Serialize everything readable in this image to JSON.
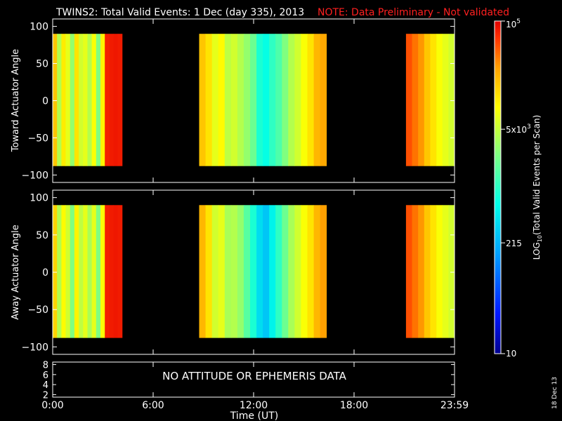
{
  "header": {
    "title": "TWINS2: Total Valid Events:  1 Dec (day 335), 2013",
    "note": "NOTE: Data Preliminary - Not validated",
    "note_color": "#ff2020"
  },
  "stamp": "18 Dec 13",
  "chart_data": [
    {
      "type": "heatmap",
      "panel": "toward",
      "ylabel": "Toward Actuator Angle",
      "ylim": [
        -110,
        110
      ],
      "yticks": [
        100,
        50,
        0,
        -50,
        -100
      ],
      "xlim": [
        0,
        24
      ],
      "angle_range": [
        -88,
        90
      ],
      "blocks": [
        {
          "start": 0.0,
          "end": 4.15,
          "level": [
            0.7,
            0.55,
            0.65,
            0.6,
            0.52,
            0.66,
            0.58,
            0.6,
            0.55,
            0.62,
            0.5,
            0.64,
            0.92,
            0.93,
            0.94,
            0.93
          ]
        },
        {
          "start": 8.75,
          "end": 16.35,
          "level": [
            0.7,
            0.66,
            0.6,
            0.63,
            0.56,
            0.58,
            0.55,
            0.52,
            0.48,
            0.4,
            0.38,
            0.42,
            0.45,
            0.5,
            0.55,
            0.58,
            0.62,
            0.66,
            0.72,
            0.74
          ]
        },
        {
          "start": 21.1,
          "end": 24.0,
          "level": [
            0.84,
            0.8,
            0.76,
            0.7,
            0.66,
            0.62,
            0.6,
            0.58
          ]
        }
      ]
    },
    {
      "type": "heatmap",
      "panel": "away",
      "ylabel": "Away Actuator Angle",
      "ylim": [
        -110,
        110
      ],
      "yticks": [
        100,
        50,
        0,
        -50,
        -100
      ],
      "xlim": [
        0,
        24
      ],
      "angle_range": [
        -88,
        90
      ],
      "blocks": [
        {
          "start": 0.0,
          "end": 4.15,
          "level": [
            0.68,
            0.55,
            0.63,
            0.58,
            0.5,
            0.64,
            0.56,
            0.6,
            0.54,
            0.6,
            0.5,
            0.62,
            0.92,
            0.93,
            0.94,
            0.93
          ]
        },
        {
          "start": 8.75,
          "end": 16.35,
          "level": [
            0.72,
            0.66,
            0.58,
            0.6,
            0.54,
            0.55,
            0.52,
            0.46,
            0.4,
            0.33,
            0.3,
            0.36,
            0.42,
            0.48,
            0.54,
            0.58,
            0.62,
            0.66,
            0.72,
            0.75
          ]
        },
        {
          "start": 21.1,
          "end": 24.0,
          "level": [
            0.84,
            0.8,
            0.76,
            0.7,
            0.66,
            0.62,
            0.6,
            0.58
          ]
        }
      ]
    }
  ],
  "bottom_panel": {
    "message": "NO ATTITUDE OR EPHEMERIS DATA",
    "yticks": [
      8,
      6,
      4,
      2
    ],
    "ylim": [
      1.5,
      8.5
    ]
  },
  "time_axis": {
    "xlabel": "Time (UT)",
    "ticks": [
      {
        "t": 0,
        "label": "0:00"
      },
      {
        "t": 6,
        "label": "6:00"
      },
      {
        "t": 12,
        "label": "12:00"
      },
      {
        "t": 18,
        "label": "18:00"
      },
      {
        "t": 24,
        "label": "23:59"
      }
    ]
  },
  "colorbar": {
    "label": "LOG10(Total Valid Events per Scan)",
    "label_main": "LOG",
    "label_sub": "10",
    "label_rest": "(Total Valid Events per Scan)",
    "min": 10,
    "max": 100000,
    "ticks": [
      {
        "value": 10,
        "base": "10",
        "exp": ""
      },
      {
        "value": 215,
        "base": "215",
        "exp": ""
      },
      {
        "value": 5000,
        "base": "5x10",
        "exp": "3"
      },
      {
        "value": 100000,
        "base": "10",
        "exp": "5"
      }
    ]
  },
  "palette": [
    "#00008f",
    "#0018ff",
    "#00a0ff",
    "#00ffe8",
    "#80ff80",
    "#ffff00",
    "#ffa000",
    "#ff3000",
    "#e00000"
  ]
}
